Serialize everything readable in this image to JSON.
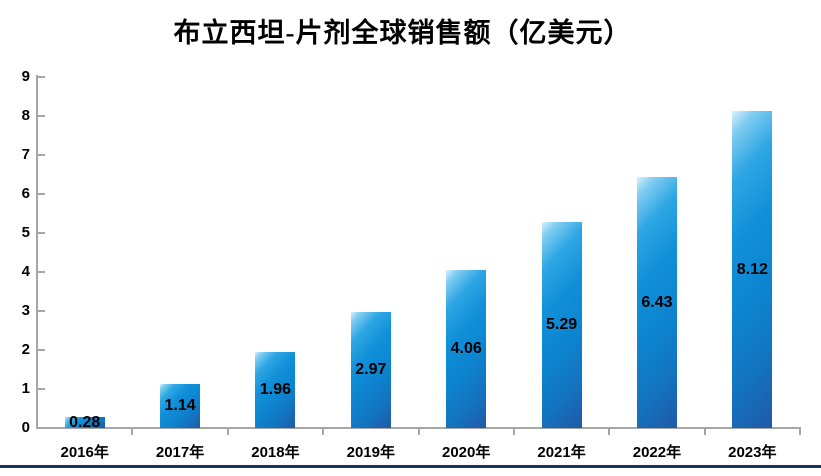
{
  "chart_data": {
    "type": "bar",
    "title": "布立西坦-片剂全球销售额（亿美元）",
    "categories": [
      "2016年",
      "2017年",
      "2018年",
      "2019年",
      "2020年",
      "2021年",
      "2022年",
      "2023年"
    ],
    "values": [
      0.28,
      1.14,
      1.96,
      2.97,
      4.06,
      5.29,
      6.43,
      8.12
    ],
    "data_labels": [
      "0.28",
      "1.14",
      "1.96",
      "2.97",
      "4.06",
      "5.29",
      "6.43",
      "8.12"
    ],
    "xlabel": "",
    "ylabel": "",
    "ylim": [
      0,
      9
    ],
    "yticks": [
      "0",
      "1",
      "2",
      "3",
      "4",
      "5",
      "6",
      "7",
      "8",
      "9"
    ],
    "grid": false,
    "legend": null,
    "data_label_position": "center-inside",
    "colors": {
      "bar_gradient_light": "#d9f1fb",
      "bar_gradient_mid": "#0d85d0",
      "bar_gradient_dark": "#2059a5",
      "axis_line": "#a6a6a6",
      "text": "#000000",
      "bottom_border": "#17375e",
      "background": "#ffffff"
    }
  }
}
